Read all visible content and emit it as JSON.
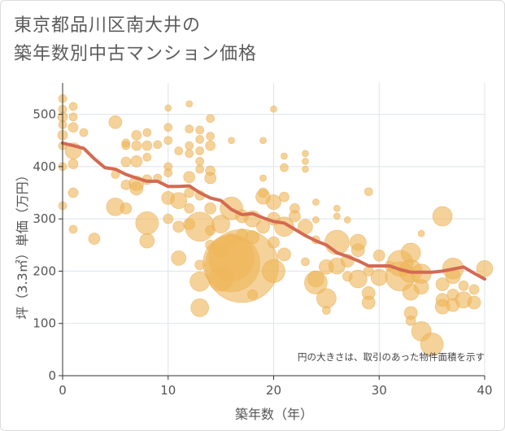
{
  "title_line1": "東京都品川区南大井の",
  "title_line2": "築年数別中古マンション価格",
  "chart_data": {
    "type": "scatter",
    "xlabel": "築年数（年）",
    "ylabel": "坪（3.3㎡）単価（万円）",
    "xlim": [
      0,
      40
    ],
    "ylim": [
      0,
      560
    ],
    "xticks": [
      0,
      10,
      20,
      30,
      40
    ],
    "yticks": [
      0,
      100,
      200,
      300,
      400,
      500
    ],
    "grid": true,
    "note": "円の大きさは、取引のあった物件面積を示す",
    "trend_line": {
      "x": [
        0,
        1,
        2,
        3,
        4,
        5,
        6,
        7,
        8,
        9,
        10,
        11,
        12,
        13,
        14,
        15,
        16,
        17,
        18,
        19,
        20,
        21,
        22,
        23,
        24,
        25,
        26,
        27,
        28,
        29,
        30,
        31,
        32,
        33,
        34,
        35,
        36,
        37,
        38,
        39,
        40
      ],
      "y": [
        445,
        440,
        435,
        415,
        398,
        395,
        385,
        378,
        372,
        372,
        362,
        362,
        363,
        350,
        340,
        335,
        318,
        308,
        310,
        302,
        295,
        292,
        280,
        268,
        258,
        250,
        235,
        228,
        220,
        210,
        210,
        210,
        203,
        198,
        198,
        198,
        200,
        204,
        208,
        196,
        185
      ]
    },
    "points": [
      {
        "x": 0,
        "y": 530,
        "s": 5
      },
      {
        "x": 0,
        "y": 510,
        "s": 5
      },
      {
        "x": 0,
        "y": 495,
        "s": 6
      },
      {
        "x": 0,
        "y": 480,
        "s": 5
      },
      {
        "x": 0,
        "y": 460,
        "s": 6
      },
      {
        "x": 0,
        "y": 440,
        "s": 5
      },
      {
        "x": 0,
        "y": 400,
        "s": 5
      },
      {
        "x": 0,
        "y": 325,
        "s": 5
      },
      {
        "x": 1,
        "y": 515,
        "s": 5
      },
      {
        "x": 1,
        "y": 495,
        "s": 5
      },
      {
        "x": 1,
        "y": 475,
        "s": 6
      },
      {
        "x": 1,
        "y": 430,
        "s": 10
      },
      {
        "x": 1,
        "y": 405,
        "s": 6
      },
      {
        "x": 1,
        "y": 350,
        "s": 6
      },
      {
        "x": 1,
        "y": 280,
        "s": 5
      },
      {
        "x": 2,
        "y": 465,
        "s": 5
      },
      {
        "x": 3,
        "y": 262,
        "s": 7
      },
      {
        "x": 5,
        "y": 485,
        "s": 8
      },
      {
        "x": 5,
        "y": 385,
        "s": 5
      },
      {
        "x": 5,
        "y": 323,
        "s": 11
      },
      {
        "x": 6,
        "y": 445,
        "s": 5
      },
      {
        "x": 6,
        "y": 440,
        "s": 5
      },
      {
        "x": 6,
        "y": 409,
        "s": 6
      },
      {
        "x": 6,
        "y": 365,
        "s": 6
      },
      {
        "x": 6,
        "y": 320,
        "s": 7
      },
      {
        "x": 7,
        "y": 460,
        "s": 6
      },
      {
        "x": 7,
        "y": 440,
        "s": 6
      },
      {
        "x": 7,
        "y": 410,
        "s": 7
      },
      {
        "x": 7,
        "y": 368,
        "s": 9
      },
      {
        "x": 7,
        "y": 358,
        "s": 8
      },
      {
        "x": 8,
        "y": 465,
        "s": 5
      },
      {
        "x": 8,
        "y": 440,
        "s": 6
      },
      {
        "x": 8,
        "y": 418,
        "s": 5
      },
      {
        "x": 8,
        "y": 375,
        "s": 6
      },
      {
        "x": 8,
        "y": 292,
        "s": 14
      },
      {
        "x": 8,
        "y": 258,
        "s": 9
      },
      {
        "x": 9,
        "y": 442,
        "s": 5
      },
      {
        "x": 9,
        "y": 378,
        "s": 5
      },
      {
        "x": 10,
        "y": 512,
        "s": 4
      },
      {
        "x": 10,
        "y": 475,
        "s": 5
      },
      {
        "x": 10,
        "y": 450,
        "s": 5
      },
      {
        "x": 10,
        "y": 400,
        "s": 5
      },
      {
        "x": 10,
        "y": 388,
        "s": 5
      },
      {
        "x": 10,
        "y": 340,
        "s": 8
      },
      {
        "x": 10,
        "y": 300,
        "s": 6
      },
      {
        "x": 11,
        "y": 430,
        "s": 5
      },
      {
        "x": 11,
        "y": 335,
        "s": 10
      },
      {
        "x": 11,
        "y": 285,
        "s": 7
      },
      {
        "x": 11,
        "y": 225,
        "s": 9
      },
      {
        "x": 12,
        "y": 520,
        "s": 4
      },
      {
        "x": 12,
        "y": 472,
        "s": 5
      },
      {
        "x": 12,
        "y": 440,
        "s": 5
      },
      {
        "x": 12,
        "y": 425,
        "s": 5
      },
      {
        "x": 12,
        "y": 380,
        "s": 7
      },
      {
        "x": 12,
        "y": 350,
        "s": 6
      },
      {
        "x": 12,
        "y": 320,
        "s": 6
      },
      {
        "x": 12,
        "y": 290,
        "s": 7
      },
      {
        "x": 13,
        "y": 470,
        "s": 5
      },
      {
        "x": 13,
        "y": 452,
        "s": 5
      },
      {
        "x": 13,
        "y": 430,
        "s": 5
      },
      {
        "x": 13,
        "y": 410,
        "s": 5
      },
      {
        "x": 13,
        "y": 395,
        "s": 5
      },
      {
        "x": 13,
        "y": 345,
        "s": 6
      },
      {
        "x": 13,
        "y": 285,
        "s": 18
      },
      {
        "x": 13,
        "y": 212,
        "s": 6
      },
      {
        "x": 13,
        "y": 180,
        "s": 12
      },
      {
        "x": 13,
        "y": 130,
        "s": 11
      },
      {
        "x": 14,
        "y": 492,
        "s": 5
      },
      {
        "x": 14,
        "y": 458,
        "s": 5
      },
      {
        "x": 14,
        "y": 440,
        "s": 6
      },
      {
        "x": 14,
        "y": 392,
        "s": 6
      },
      {
        "x": 14,
        "y": 378,
        "s": 7
      },
      {
        "x": 14,
        "y": 320,
        "s": 7
      },
      {
        "x": 14,
        "y": 278,
        "s": 6
      },
      {
        "x": 14,
        "y": 250,
        "s": 6
      },
      {
        "x": 15,
        "y": 290,
        "s": 11
      },
      {
        "x": 15,
        "y": 240,
        "s": 9
      },
      {
        "x": 15,
        "y": 185,
        "s": 15
      },
      {
        "x": 16,
        "y": 450,
        "s": 4
      },
      {
        "x": 16,
        "y": 320,
        "s": 14
      },
      {
        "x": 16,
        "y": 260,
        "s": 8
      },
      {
        "x": 16,
        "y": 225,
        "s": 28
      },
      {
        "x": 16,
        "y": 215,
        "s": 35
      },
      {
        "x": 17,
        "y": 305,
        "s": 8
      },
      {
        "x": 17,
        "y": 270,
        "s": 7
      },
      {
        "x": 17,
        "y": 210,
        "s": 45
      },
      {
        "x": 18,
        "y": 300,
        "s": 10
      },
      {
        "x": 18,
        "y": 265,
        "s": 8
      },
      {
        "x": 18,
        "y": 155,
        "s": 6
      },
      {
        "x": 19,
        "y": 450,
        "s": 4
      },
      {
        "x": 19,
        "y": 378,
        "s": 4
      },
      {
        "x": 19,
        "y": 350,
        "s": 6
      },
      {
        "x": 19,
        "y": 342,
        "s": 9
      },
      {
        "x": 19,
        "y": 285,
        "s": 8
      },
      {
        "x": 20,
        "y": 510,
        "s": 4
      },
      {
        "x": 20,
        "y": 332,
        "s": 9
      },
      {
        "x": 20,
        "y": 300,
        "s": 8
      },
      {
        "x": 20,
        "y": 255,
        "s": 7
      },
      {
        "x": 20,
        "y": 200,
        "s": 14
      },
      {
        "x": 21,
        "y": 420,
        "s": 4
      },
      {
        "x": 21,
        "y": 398,
        "s": 5
      },
      {
        "x": 21,
        "y": 342,
        "s": 6
      },
      {
        "x": 21,
        "y": 285,
        "s": 12
      },
      {
        "x": 21,
        "y": 232,
        "s": 8
      },
      {
        "x": 22,
        "y": 320,
        "s": 6
      },
      {
        "x": 22,
        "y": 305,
        "s": 7
      },
      {
        "x": 23,
        "y": 425,
        "s": 4
      },
      {
        "x": 23,
        "y": 410,
        "s": 4
      },
      {
        "x": 23,
        "y": 395,
        "s": 4
      },
      {
        "x": 23,
        "y": 285,
        "s": 9
      },
      {
        "x": 23,
        "y": 218,
        "s": 5
      },
      {
        "x": 24,
        "y": 332,
        "s": 4
      },
      {
        "x": 24,
        "y": 298,
        "s": 4
      },
      {
        "x": 24,
        "y": 260,
        "s": 5
      },
      {
        "x": 24,
        "y": 185,
        "s": 10
      },
      {
        "x": 24,
        "y": 178,
        "s": 14
      },
      {
        "x": 25,
        "y": 208,
        "s": 9
      },
      {
        "x": 25,
        "y": 148,
        "s": 12
      },
      {
        "x": 25,
        "y": 125,
        "s": 5
      },
      {
        "x": 26,
        "y": 320,
        "s": 4
      },
      {
        "x": 26,
        "y": 305,
        "s": 4
      },
      {
        "x": 26,
        "y": 255,
        "s": 15
      },
      {
        "x": 26,
        "y": 210,
        "s": 10
      },
      {
        "x": 27,
        "y": 298,
        "s": 4
      },
      {
        "x": 27,
        "y": 220,
        "s": 8
      },
      {
        "x": 27,
        "y": 190,
        "s": 6
      },
      {
        "x": 28,
        "y": 255,
        "s": 10
      },
      {
        "x": 28,
        "y": 240,
        "s": 8
      },
      {
        "x": 28,
        "y": 185,
        "s": 11
      },
      {
        "x": 29,
        "y": 352,
        "s": 5
      },
      {
        "x": 29,
        "y": 200,
        "s": 6
      },
      {
        "x": 29,
        "y": 158,
        "s": 8
      },
      {
        "x": 29,
        "y": 140,
        "s": 8
      },
      {
        "x": 30,
        "y": 230,
        "s": 7
      },
      {
        "x": 30,
        "y": 188,
        "s": 10
      },
      {
        "x": 31,
        "y": 210,
        "s": 6
      },
      {
        "x": 32,
        "y": 215,
        "s": 16
      },
      {
        "x": 32,
        "y": 190,
        "s": 18
      },
      {
        "x": 33,
        "y": 235,
        "s": 12
      },
      {
        "x": 33,
        "y": 200,
        "s": 14
      },
      {
        "x": 33,
        "y": 160,
        "s": 10
      },
      {
        "x": 33,
        "y": 120,
        "s": 8
      },
      {
        "x": 33,
        "y": 105,
        "s": 6
      },
      {
        "x": 34,
        "y": 272,
        "s": 4
      },
      {
        "x": 34,
        "y": 195,
        "s": 12
      },
      {
        "x": 34,
        "y": 170,
        "s": 9
      },
      {
        "x": 34,
        "y": 85,
        "s": 12
      },
      {
        "x": 35,
        "y": 60,
        "s": 14
      },
      {
        "x": 36,
        "y": 305,
        "s": 12
      },
      {
        "x": 36,
        "y": 175,
        "s": 8
      },
      {
        "x": 36,
        "y": 145,
        "s": 8
      },
      {
        "x": 36,
        "y": 132,
        "s": 9
      },
      {
        "x": 37,
        "y": 205,
        "s": 13
      },
      {
        "x": 37,
        "y": 190,
        "s": 9
      },
      {
        "x": 37,
        "y": 155,
        "s": 7
      },
      {
        "x": 37,
        "y": 135,
        "s": 8
      },
      {
        "x": 38,
        "y": 172,
        "s": 6
      },
      {
        "x": 38,
        "y": 145,
        "s": 10
      },
      {
        "x": 39,
        "y": 165,
        "s": 6
      },
      {
        "x": 39,
        "y": 140,
        "s": 8
      },
      {
        "x": 40,
        "y": 205,
        "s": 10
      }
    ]
  }
}
